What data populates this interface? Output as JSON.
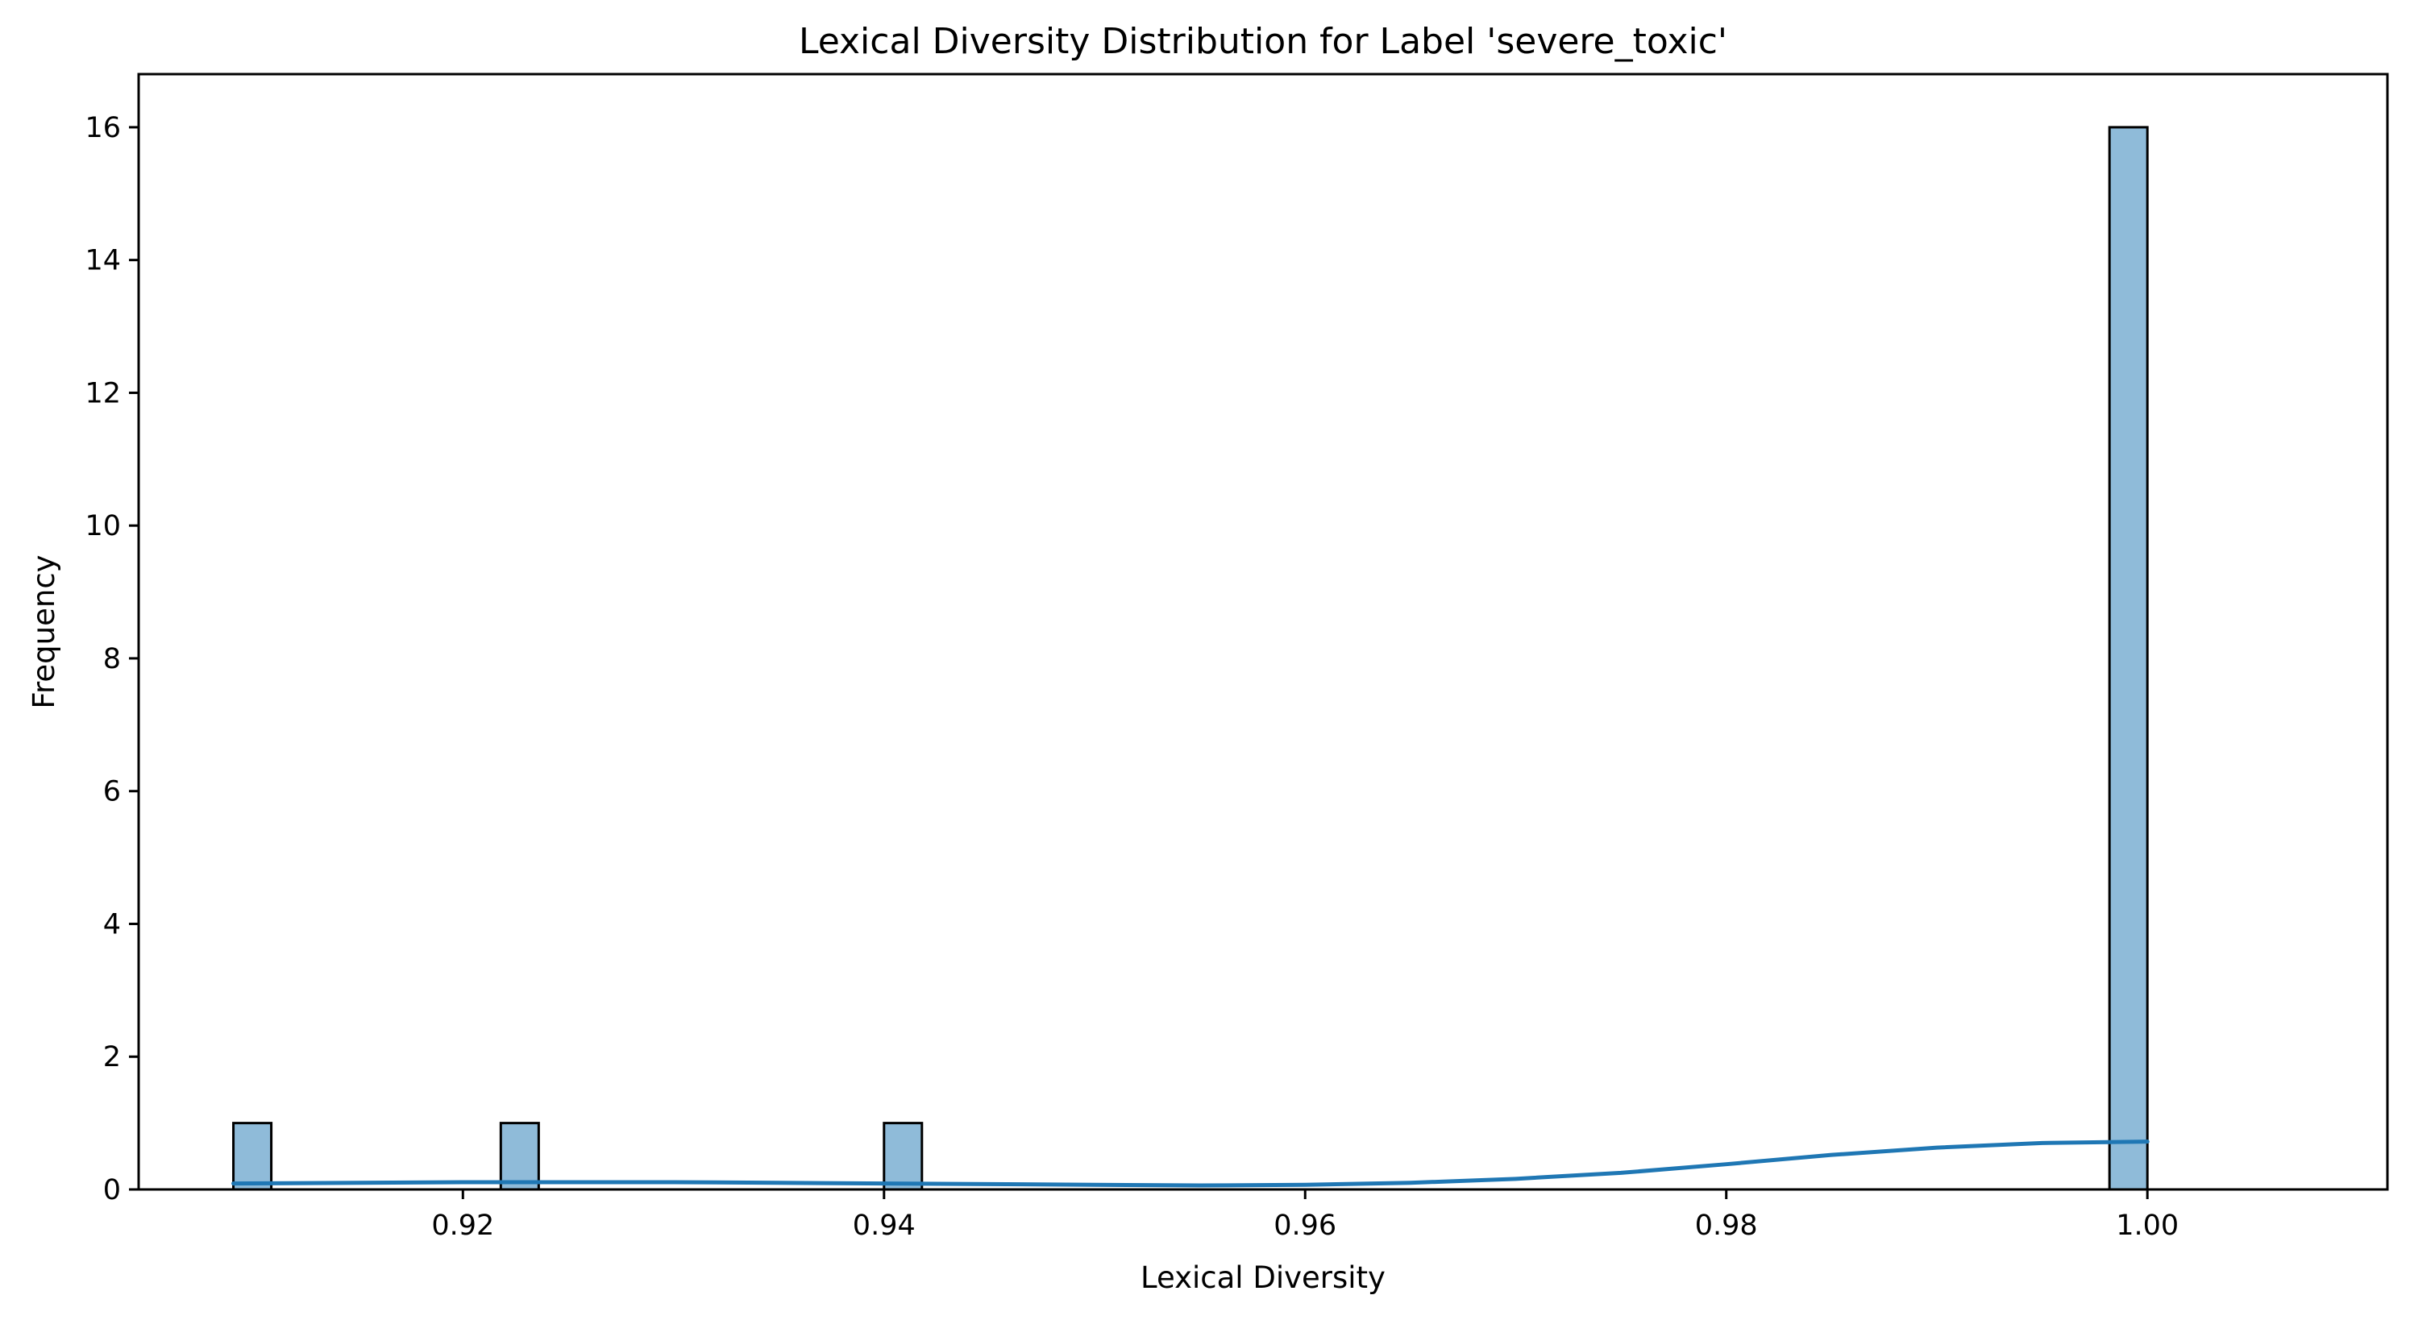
{
  "chart_data": {
    "type": "bar",
    "title": "Lexical Diversity Distribution for Label 'severe_toxic'",
    "xlabel": "Lexical Diversity",
    "ylabel": "Frequency",
    "xlim": [
      0.9046,
      1.0114
    ],
    "ylim": [
      0,
      16.8
    ],
    "grid": false,
    "bar_color": "#1f77b4",
    "bar_fill_opacity": 0.5,
    "edge_color": "#000000",
    "kde_color": "#1f77b4",
    "x_ticks": [
      {
        "value": 0.92,
        "label": "0.92"
      },
      {
        "value": 0.94,
        "label": "0.94"
      },
      {
        "value": 0.96,
        "label": "0.96"
      },
      {
        "value": 0.98,
        "label": "0.98"
      },
      {
        "value": 1.0,
        "label": "1.00"
      }
    ],
    "y_ticks": [
      {
        "value": 0,
        "label": "0"
      },
      {
        "value": 2,
        "label": "2"
      },
      {
        "value": 4,
        "label": "4"
      },
      {
        "value": 6,
        "label": "6"
      },
      {
        "value": 8,
        "label": "8"
      },
      {
        "value": 10,
        "label": "10"
      },
      {
        "value": 12,
        "label": "12"
      },
      {
        "value": 14,
        "label": "14"
      },
      {
        "value": 16,
        "label": "16"
      }
    ],
    "bins": [
      {
        "x0": 0.9091,
        "x1": 0.9109,
        "count": 1
      },
      {
        "x0": 0.9218,
        "x1": 0.9236,
        "count": 1
      },
      {
        "x0": 0.94,
        "x1": 0.9418,
        "count": 1
      },
      {
        "x0": 0.9982,
        "x1": 1.0,
        "count": 16
      }
    ],
    "kde": {
      "x": [
        0.9091,
        0.915,
        0.92,
        0.925,
        0.93,
        0.935,
        0.94,
        0.945,
        0.95,
        0.955,
        0.96,
        0.965,
        0.97,
        0.975,
        0.98,
        0.985,
        0.99,
        0.995,
        1.0
      ],
      "y": [
        0.09,
        0.1,
        0.11,
        0.11,
        0.11,
        0.1,
        0.09,
        0.08,
        0.07,
        0.06,
        0.07,
        0.1,
        0.16,
        0.25,
        0.38,
        0.52,
        0.63,
        0.7,
        0.72
      ]
    }
  }
}
